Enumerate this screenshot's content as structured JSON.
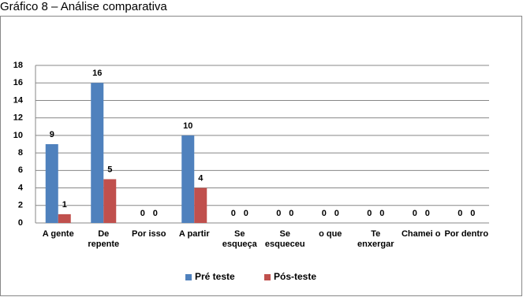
{
  "chart_data": {
    "type": "bar",
    "title": "Gráfico 8 – Análise comparativa",
    "categories": [
      "A gente",
      "De repente",
      "Por isso",
      "A partir",
      "Se esqueça",
      "Se esqueceu",
      "o que",
      "Te enxergar",
      "Chamei o",
      "Por dentro"
    ],
    "series": [
      {
        "name": "Pré teste",
        "color": "#4f81bd",
        "values": [
          9,
          16,
          0,
          10,
          0,
          0,
          0,
          0,
          0,
          0
        ]
      },
      {
        "name": "Pós-teste",
        "color": "#c0504d",
        "values": [
          1,
          5,
          0,
          4,
          0,
          0,
          0,
          0,
          0,
          0
        ]
      }
    ],
    "ylim": [
      0,
      18
    ],
    "yticks": [
      0,
      2,
      4,
      6,
      8,
      10,
      12,
      14,
      16,
      18
    ],
    "grid": true,
    "legend": "bottom"
  }
}
